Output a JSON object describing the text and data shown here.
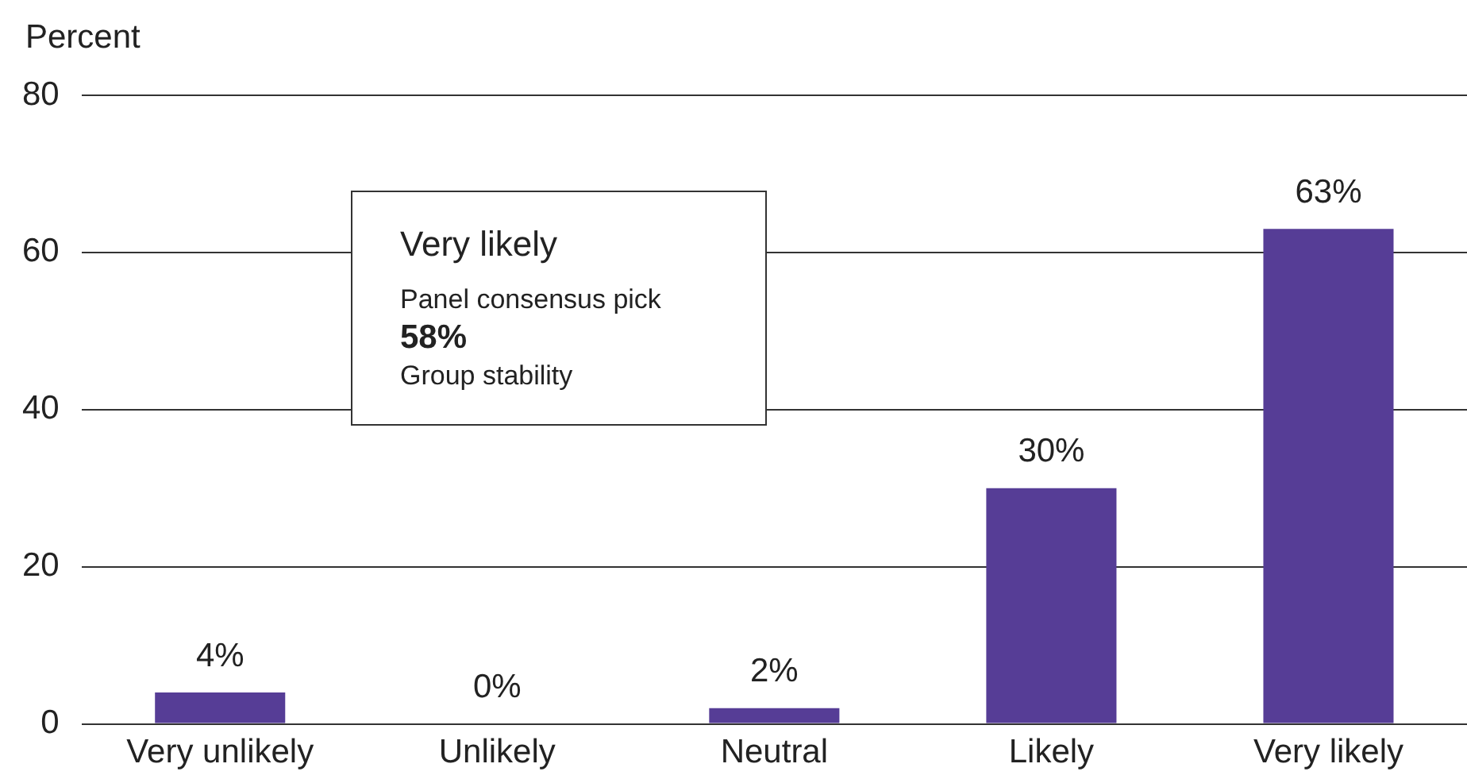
{
  "chart_data": {
    "type": "bar",
    "ylabel": "Percent",
    "categories": [
      "Very unlikely",
      "Unlikely",
      "Neutral",
      "Likely",
      "Very likely"
    ],
    "values": [
      4,
      0,
      2,
      30,
      63
    ],
    "value_labels": [
      "4%",
      "0%",
      "2%",
      "30%",
      "63%"
    ],
    "color": "#563d96",
    "ylim": [
      0,
      80
    ],
    "yticks": [
      0,
      20,
      40,
      60,
      80
    ],
    "grid": "y",
    "legend": false,
    "annotations": [
      "Very likely",
      "Panel consensus pick",
      "58%",
      "Group stability"
    ]
  }
}
